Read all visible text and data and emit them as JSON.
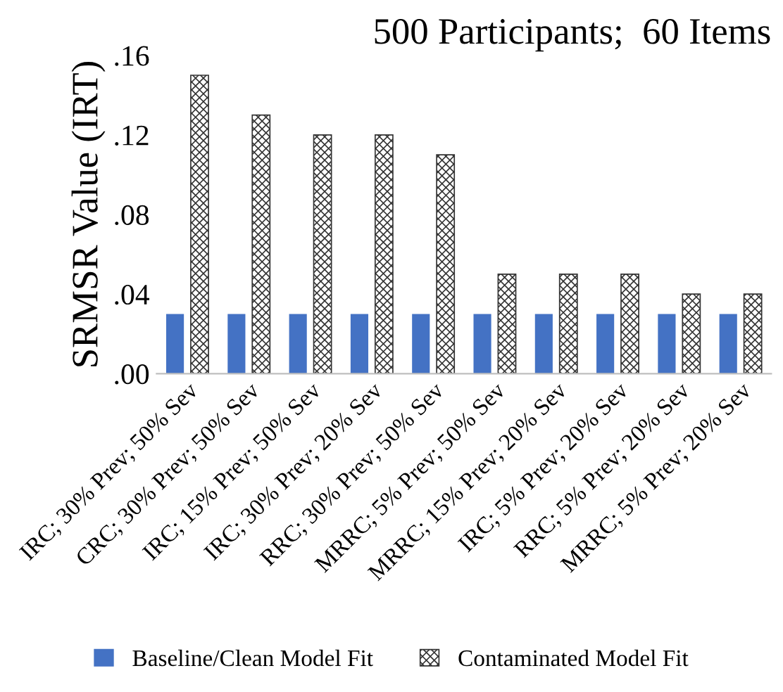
{
  "chart_data": {
    "type": "bar",
    "title": "500 Participants;  60 Items",
    "ylabel": "SRMSR Value (IRT)",
    "categories": [
      "IRC; 30% Prev; 50% Sev",
      "CRC; 30% Prev; 50% Sev",
      "IRC; 15% Prev; 50% Sev",
      "IRC; 30% Prev; 20% Sev",
      "RRC; 30% Prev; 50% Sev",
      "MRRC; 5% Prev; 50% Sev",
      "MRRC; 15% Prev; 20% Sev",
      "IRC; 5% Prev; 20% Sev",
      "RRC; 5% Prev; 20% Sev",
      "MRRC; 5% Prev; 20% Sev"
    ],
    "series": [
      {
        "name": "Baseline/Clean Model Fit",
        "color": "#4472c4",
        "values": [
          0.03,
          0.03,
          0.03,
          0.03,
          0.03,
          0.03,
          0.03,
          0.03,
          0.03,
          0.03
        ]
      },
      {
        "name": "Contaminated Model Fit",
        "color": "#333333",
        "values": [
          0.15,
          0.13,
          0.12,
          0.12,
          0.11,
          0.05,
          0.05,
          0.05,
          0.04,
          0.04
        ]
      }
    ],
    "ylim": [
      0,
      0.16
    ],
    "yticks": [
      {
        "value": 0,
        "label": ".00"
      },
      {
        "value": 0.04,
        "label": ".04"
      },
      {
        "value": 0.08,
        "label": ".08"
      },
      {
        "value": 0.12,
        "label": ".12"
      },
      {
        "value": 0.16,
        "label": ".16"
      }
    ],
    "grid": false,
    "legend": "bottom"
  }
}
